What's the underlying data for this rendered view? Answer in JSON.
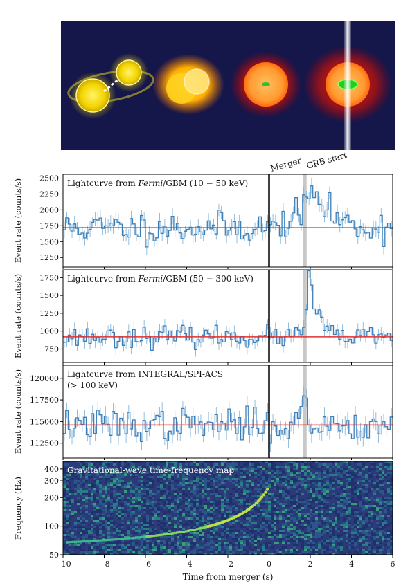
{
  "chart_data": [
    {
      "type": "illustration",
      "description_labels": []
    },
    {
      "type": "line",
      "panel_label": "Lightcurve from Fermi/GBM (10 − 50 keV)",
      "panel_label_parts": {
        "pre": "Lightcurve from ",
        "italic": "Fermi",
        "post": "/GBM (10 − 50 keV)"
      },
      "ylabel": "Event rate (counts/s)",
      "ylim": [
        1100,
        2560
      ],
      "yticks": [
        1250,
        1500,
        1750,
        2000,
        2250,
        2500
      ],
      "xlim": [
        -10,
        6
      ],
      "background": 1720,
      "series": [
        {
          "values_seed": 11,
          "mean": 1720,
          "sd": 120,
          "err": 110,
          "bumps": [
            {
              "t": 1.2,
              "amp": 150,
              "w": 0.4
            },
            {
              "t": 2.1,
              "amp": 450,
              "w": 0.35
            },
            {
              "t": 2.9,
              "amp": 200,
              "w": 0.6
            }
          ]
        }
      ]
    },
    {
      "type": "line",
      "panel_label": "Lightcurve from Fermi/GBM (50 − 300 keV)",
      "panel_label_parts": {
        "pre": "Lightcurve from ",
        "italic": "Fermi",
        "post": "/GBM (50 − 300 keV)"
      },
      "ylabel": "Event rate (counts/s)",
      "ylim": [
        560,
        1860
      ],
      "yticks": [
        750,
        1000,
        1250,
        1500,
        1750
      ],
      "xlim": [
        -10,
        6
      ],
      "background": 920,
      "series": [
        {
          "values_seed": 23,
          "mean": 920,
          "sd": 70,
          "err": 90,
          "bumps": [
            {
              "t": 1.95,
              "amp": 720,
              "w": 0.12
            },
            {
              "t": 2.3,
              "amp": 330,
              "w": 0.3
            }
          ]
        }
      ]
    },
    {
      "type": "line",
      "panel_label": "Lightcurve from INTEGRAL/SPI-ACS",
      "panel_label_line2": "(> 100 keV)",
      "ylabel": "Event rate (counts/s)",
      "ylim": [
        110800,
        121500
      ],
      "yticks": [
        112500,
        115000,
        117500,
        120000
      ],
      "xlim": [
        -10,
        6
      ],
      "background": 114600,
      "series": [
        {
          "values_seed": 37,
          "mean": 114600,
          "sd": 900,
          "err": 950,
          "bumps": [
            {
              "t": 1.75,
              "amp": 5800,
              "w": 0.05
            },
            {
              "t": 1.55,
              "amp": 2000,
              "w": 0.05
            }
          ]
        }
      ]
    },
    {
      "type": "heatmap",
      "panel_label": "Gravitational-wave time-frequency map",
      "ylabel": "Frequency (Hz)",
      "yticks": [
        50,
        100,
        200,
        300,
        400
      ],
      "ylim": [
        50,
        480
      ],
      "yscale": "log",
      "xlabel": "Time from merger (s)",
      "xlim": [
        -10,
        6
      ],
      "xticks": [
        -10,
        -8,
        -6,
        -4,
        -2,
        0,
        2,
        4,
        6
      ]
    }
  ],
  "annotations": {
    "merger_label": "Merger",
    "grb_label": "GRB start",
    "merger_time": 0,
    "grb_time": 1.74
  },
  "colors": {
    "trace": "#3c7fb8",
    "errbar": "#7aaed6",
    "background_line": "#e03030",
    "grb_band": "#c8c8c8",
    "merger_line": "#000000",
    "illustration_bg": "#15164a",
    "map_bg": "#2c3a7a"
  }
}
